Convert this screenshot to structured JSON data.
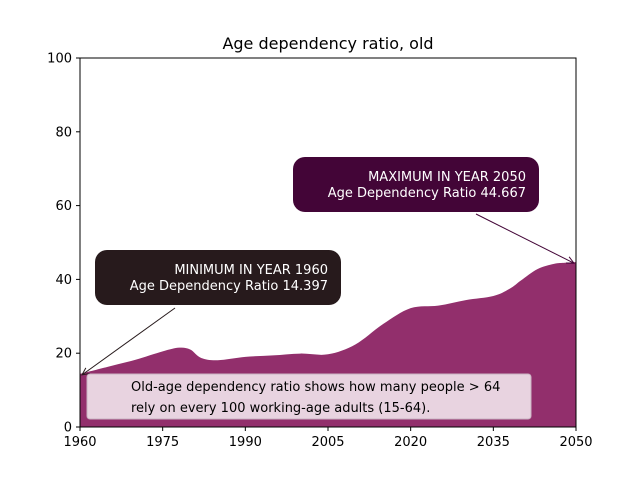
{
  "chart_data": {
    "type": "area",
    "title": "Age dependency ratio, old",
    "xlabel": "",
    "ylabel": "",
    "xlim": [
      1960,
      2050
    ],
    "ylim": [
      0,
      100
    ],
    "x_ticks": [
      "1960",
      "1975",
      "1990",
      "2005",
      "2020",
      "2035",
      "2050"
    ],
    "y_ticks": [
      "0",
      "20",
      "40",
      "60",
      "80",
      "100"
    ],
    "grid": false,
    "area_color": "#922f6c",
    "x": [
      1960,
      1965,
      1970,
      1975,
      1978,
      1980,
      1982,
      1985,
      1990,
      1995,
      2000,
      2005,
      2010,
      2015,
      2020,
      2025,
      2030,
      2035,
      2038,
      2040,
      2043,
      2046,
      2048,
      2050
    ],
    "values": [
      14.4,
      16.3,
      18.2,
      20.5,
      21.5,
      21.0,
      18.7,
      18.1,
      19.0,
      19.4,
      19.9,
      19.7,
      22.4,
      27.9,
      32.2,
      32.9,
      34.4,
      35.5,
      37.5,
      39.7,
      42.8,
      44.2,
      44.5,
      44.667
    ],
    "annotations": {
      "min": {
        "line1": "MINIMUM IN YEAR  1960",
        "line2": "Age Dependency Ratio  14.397",
        "year": 1960,
        "value": 14.397,
        "box_color": "#271a1c"
      },
      "max": {
        "line1": "MAXIMUM IN YEAR  2050",
        "line2": "Age Dependency Ratio  44.667",
        "year": 2050,
        "value": 44.667,
        "box_color": "#430537"
      },
      "note": {
        "line1": "Old-age dependency ratio shows how many people > 64",
        "line2": "rely on every 100 working-age adults (15-64).",
        "box_color": "#e8d3e0"
      }
    }
  }
}
